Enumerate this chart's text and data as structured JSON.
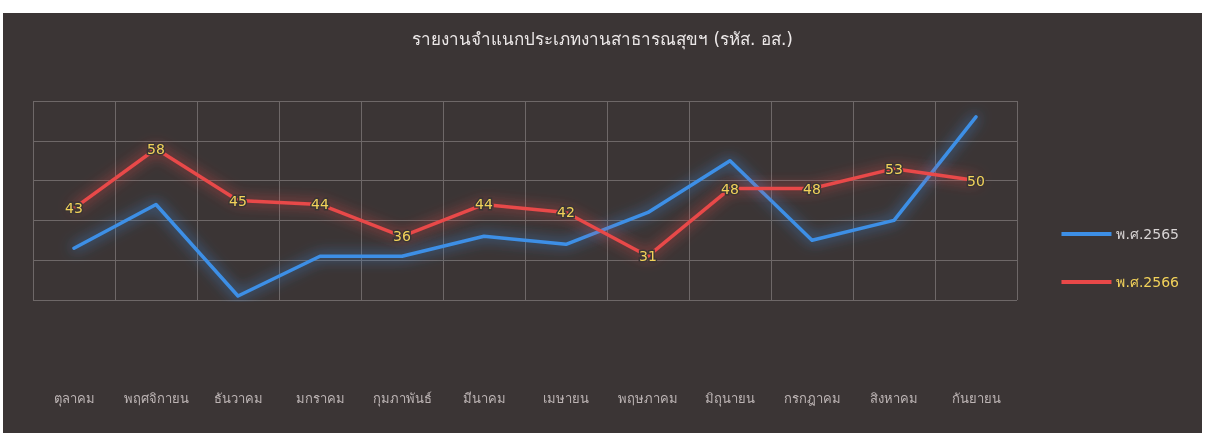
{
  "chart_data": {
    "type": "line",
    "title": "รายงานจำแนกประเภทงานสาธารณสุขฯ (รหัส. อส.)",
    "categories": [
      "ตุลาคม",
      "พฤศจิกายน",
      "ธันวาคม",
      "มกราคม",
      "กุมภาพันธ์",
      "มีนาคม",
      "เมษายน",
      "พฤษภาคม",
      "มิถุนายน",
      "กรกฎาคม",
      "สิงหาคม",
      "กันยายน"
    ],
    "series": [
      {
        "name": "พ.ศ.2565",
        "color": "#3d8fe6",
        "values": [
          33,
          44,
          21,
          31,
          31,
          36,
          34,
          42,
          55,
          35,
          40,
          66
        ]
      },
      {
        "name": "พ.ศ.2566",
        "color": "#e84848",
        "values": [
          43,
          58,
          45,
          44,
          36,
          44,
          42,
          31,
          48,
          48,
          53,
          50
        ],
        "value_labels": [
          "43",
          "58",
          "45",
          "44",
          "36",
          "44",
          "42",
          "31",
          "48",
          "48",
          "53",
          "50"
        ]
      }
    ],
    "ylim": [
      20,
      70
    ],
    "yticks": [
      20,
      30,
      40,
      50,
      60,
      70
    ],
    "tick_labels": "x",
    "grid": true,
    "legend": "right",
    "marker": "none",
    "line_style": "solid"
  }
}
